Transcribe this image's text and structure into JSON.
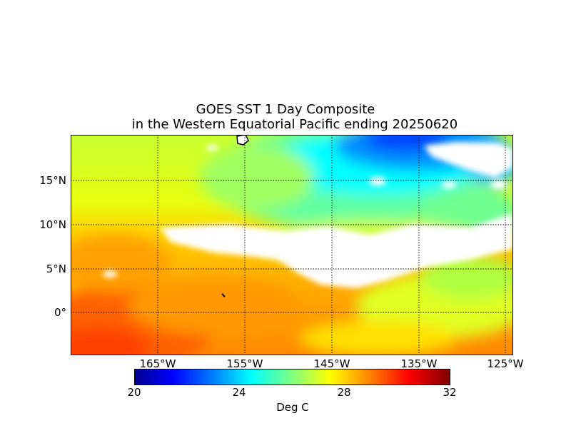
{
  "title": {
    "line1": "GOES SST 1 Day Composite",
    "line2": "in the Western Equatorial Pacific ending 20250620"
  },
  "lat_labels": [
    "15°N",
    "10°N",
    "5°N",
    "0°"
  ],
  "lon_labels": [
    "165°W",
    "155°W",
    "145°W",
    "135°W",
    "125°W"
  ],
  "colorbar": {
    "ticks": [
      "20",
      "24",
      "28",
      "32"
    ],
    "unit": "Deg C",
    "colormap": "jet",
    "range": [
      20,
      32
    ]
  },
  "colors": {
    "cold": "#0000ff",
    "cool": "#00e6ff",
    "mid": "#c8ff32",
    "warm": "#ffb000",
    "hot": "#ff4000",
    "cloud_mask": "#ffffff"
  },
  "gridlines": "dotted"
}
